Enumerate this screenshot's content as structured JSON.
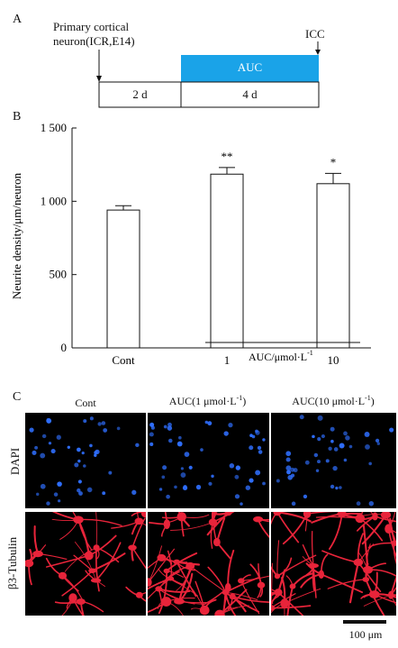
{
  "panel_a": {
    "letter": "A",
    "start_label_line1": "Primary cortical",
    "start_label_line2": "neuron(ICR,E14)",
    "end_label": "ICC",
    "treatment_label": "AUC",
    "phase1_label": "2 d",
    "phase2_label": "4 d",
    "treatment_color": "#1aa3e8"
  },
  "panel_b": {
    "letter": "B"
  },
  "chart_data": {
    "type": "bar",
    "categories": [
      "Cont",
      "1",
      "10"
    ],
    "values": [
      940,
      1185,
      1120
    ],
    "errors": [
      30,
      45,
      70
    ],
    "significance": [
      "",
      "**",
      "*"
    ],
    "ylabel": "Neurite density/μm/neuron",
    "ylim": [
      0,
      1500
    ],
    "yticks": [
      0,
      500,
      1000,
      1500
    ],
    "ytick_labels": [
      "0",
      "500",
      "1 000",
      "1 500"
    ],
    "group_label_text": "AUC/μmol·L",
    "group_label_sup": "-1"
  },
  "panel_c": {
    "letter": "C",
    "columns": [
      {
        "text": "Cont",
        "sup": ""
      },
      {
        "text": "AUC(1 μmol·L",
        "sup": "-1",
        "close": ")"
      },
      {
        "text": "AUC(10 μmol·L",
        "sup": "-1",
        "close": ")"
      }
    ],
    "rows": [
      "DAPI",
      "β3-Tubulin"
    ],
    "dapi_color": "#2f6fff",
    "tubulin_color": "#e8243a",
    "scale_bar_label": "100 μm"
  }
}
